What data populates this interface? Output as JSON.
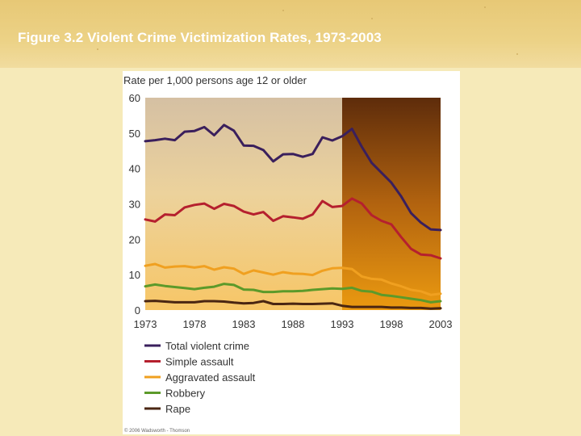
{
  "slide": {
    "title": "Figure 3.2 Violent Crime Victimization Rates, 1973-2003"
  },
  "chart_data": {
    "type": "line",
    "title": "Figure 3.2 Violent Crime Victimization Rates, 1973-2003",
    "ylabel": "Rate per 1,000 persons age 12 or older",
    "xlabel": "",
    "ylim": [
      0,
      60
    ],
    "xlim": [
      1973,
      2003
    ],
    "yticks": [
      0,
      10,
      20,
      30,
      40,
      50,
      60
    ],
    "xticks": [
      1973,
      1978,
      1983,
      1988,
      1993,
      1998,
      2003
    ],
    "shaded_region_start": 1993,
    "x": [
      1973,
      1974,
      1975,
      1976,
      1977,
      1978,
      1979,
      1980,
      1981,
      1982,
      1983,
      1984,
      1985,
      1986,
      1987,
      1988,
      1989,
      1990,
      1991,
      1992,
      1993,
      1994,
      1995,
      1996,
      1997,
      1998,
      1999,
      2000,
      2001,
      2002,
      2003
    ],
    "series": [
      {
        "name": "Total violent crime",
        "color": "#3a1f5c",
        "values": [
          47.7,
          48.0,
          48.4,
          48.0,
          50.4,
          50.6,
          51.7,
          49.4,
          52.3,
          50.7,
          46.5,
          46.4,
          45.2,
          42.0,
          44.0,
          44.1,
          43.3,
          44.1,
          48.8,
          47.9,
          49.1,
          51.2,
          46.1,
          41.6,
          38.8,
          36.0,
          32.1,
          27.4,
          24.7,
          22.8,
          22.6
        ]
      },
      {
        "name": "Simple assault",
        "color": "#b5202e",
        "values": [
          25.6,
          25.0,
          27.0,
          26.8,
          29.0,
          29.7,
          30.1,
          28.6,
          30.0,
          29.4,
          27.8,
          27.0,
          27.7,
          25.2,
          26.5,
          26.2,
          25.8,
          27.0,
          30.8,
          29.1,
          29.4,
          31.5,
          30.1,
          26.8,
          25.2,
          24.2,
          20.6,
          17.3,
          15.7,
          15.5,
          14.6
        ]
      },
      {
        "name": "Aggravated assault",
        "color": "#f0a020",
        "values": [
          12.5,
          13.0,
          12.0,
          12.3,
          12.4,
          12.0,
          12.4,
          11.4,
          12.1,
          11.7,
          10.2,
          11.2,
          10.6,
          10.0,
          10.7,
          10.3,
          10.2,
          9.9,
          11.1,
          11.8,
          11.9,
          11.6,
          9.5,
          8.8,
          8.6,
          7.5,
          6.7,
          5.7,
          5.3,
          4.3,
          4.6
        ]
      },
      {
        "name": "Robbery",
        "color": "#5c9a2a",
        "values": [
          6.7,
          7.2,
          6.8,
          6.5,
          6.2,
          5.9,
          6.3,
          6.6,
          7.4,
          7.1,
          5.8,
          5.7,
          5.1,
          5.1,
          5.3,
          5.3,
          5.4,
          5.7,
          5.9,
          6.1,
          6.0,
          6.3,
          5.4,
          5.2,
          4.3,
          4.0,
          3.6,
          3.2,
          2.8,
          2.2,
          2.5
        ]
      },
      {
        "name": "Rape",
        "color": "#4a2612",
        "values": [
          2.5,
          2.6,
          2.4,
          2.2,
          2.2,
          2.2,
          2.5,
          2.5,
          2.4,
          2.1,
          1.9,
          2.0,
          2.5,
          1.7,
          1.7,
          1.8,
          1.7,
          1.7,
          1.8,
          1.9,
          1.2,
          0.9,
          0.9,
          0.9,
          0.9,
          0.7,
          0.7,
          0.6,
          0.6,
          0.4,
          0.5
        ]
      }
    ],
    "credit": "© 2006 Wadsworth - Thomson"
  }
}
